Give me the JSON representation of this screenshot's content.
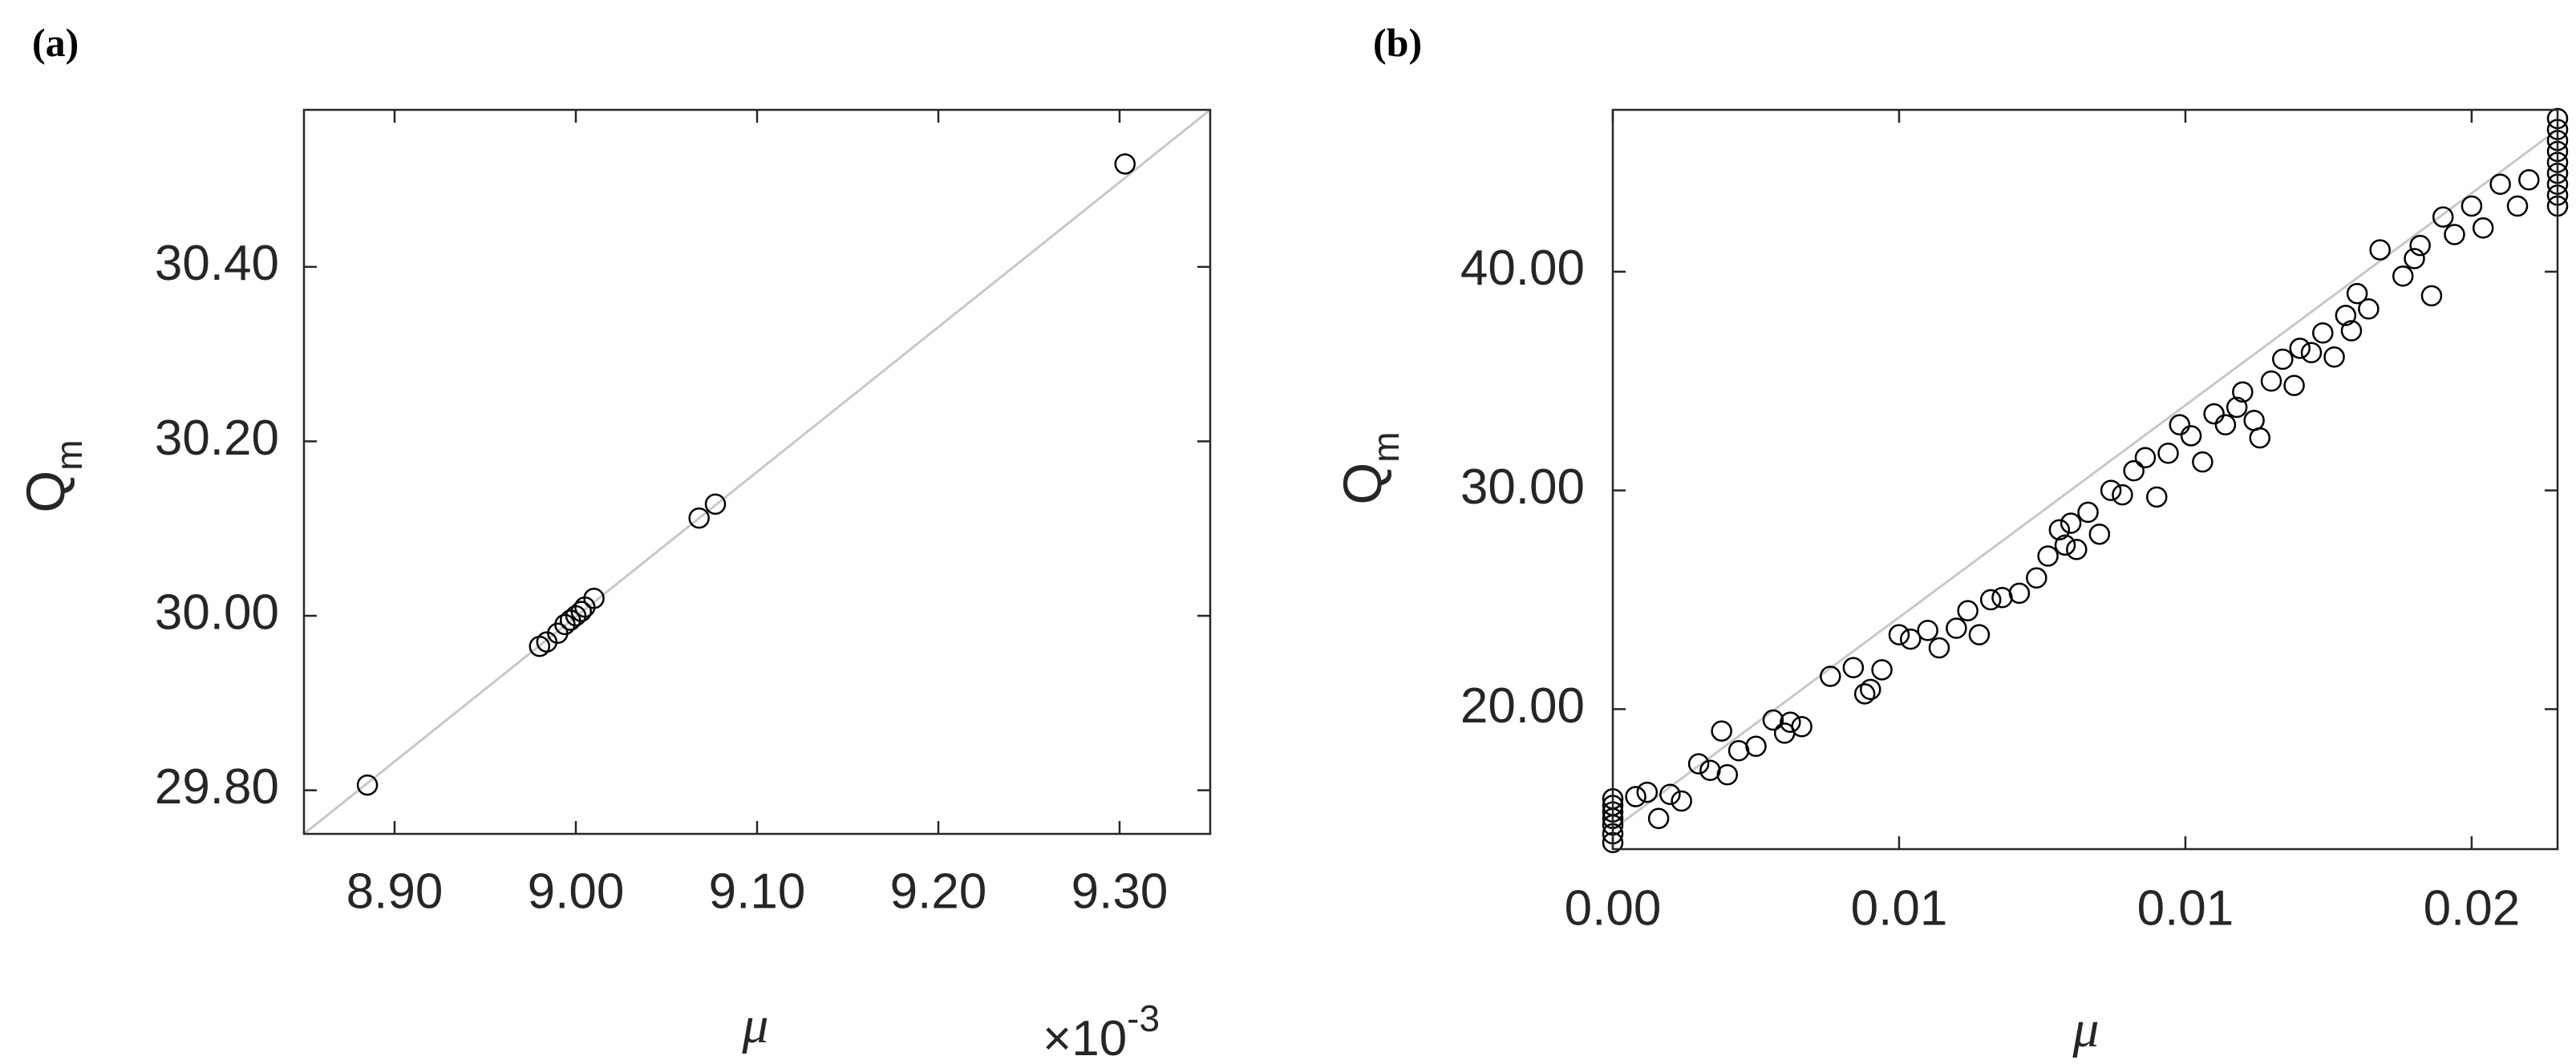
{
  "chart_data": [
    {
      "type": "scatter",
      "panel_label": "(a)",
      "xlabel": "μ",
      "ylabel": {
        "text": "Q",
        "subscript": "m"
      },
      "x_multiplier": {
        "base": "×10",
        "exponent": "-3"
      },
      "x": [
        8.885,
        8.98,
        8.984,
        8.99,
        8.994,
        8.997,
        9.0,
        9.003,
        9.005,
        9.01,
        9.068,
        9.077,
        9.303
      ],
      "y": [
        29.806,
        29.965,
        29.97,
        29.98,
        29.99,
        29.995,
        30.0,
        30.005,
        30.01,
        30.02,
        30.112,
        30.128,
        30.518
      ],
      "marker_color": "#000000",
      "fit_line": {
        "x": [
          8.85,
          9.35
        ],
        "y": [
          29.75,
          30.58
        ],
        "color": "#c8c8c8"
      },
      "xlim": [
        8.85,
        9.35
      ],
      "xticks": [
        {
          "value": 8.9,
          "label": "8.90"
        },
        {
          "value": 9.0,
          "label": "9.00"
        },
        {
          "value": 9.1,
          "label": "9.10"
        },
        {
          "value": 9.2,
          "label": "9.20"
        },
        {
          "value": 9.3,
          "label": "9.30"
        }
      ],
      "ylim": [
        29.75,
        30.58
      ],
      "yticks": [
        {
          "value": 29.8,
          "label": "29.80"
        },
        {
          "value": 30.0,
          "label": "30.00"
        },
        {
          "value": 30.2,
          "label": "30.20"
        },
        {
          "value": 30.4,
          "label": "30.40"
        }
      ],
      "grid": false
    },
    {
      "type": "scatter",
      "panel_label": "(b)",
      "xlabel": "μ",
      "ylabel": {
        "text": "Q",
        "subscript": "m"
      },
      "x": [
        0,
        0,
        0,
        0,
        0,
        0,
        0,
        0.0004,
        0.0006,
        0.0008,
        0.001,
        0.0012,
        0.0015,
        0.0017,
        0.0019,
        0.002,
        0.0022,
        0.0025,
        0.0028,
        0.003,
        0.0031,
        0.0033,
        0.0038,
        0.0042,
        0.0044,
        0.0045,
        0.0047,
        0.005,
        0.0052,
        0.0055,
        0.0057,
        0.006,
        0.0062,
        0.0064,
        0.0066,
        0.0068,
        0.0071,
        0.0074,
        0.0076,
        0.0078,
        0.0079,
        0.008,
        0.0081,
        0.0083,
        0.0085,
        0.0087,
        0.0089,
        0.0091,
        0.0093,
        0.0095,
        0.0097,
        0.0099,
        0.0101,
        0.0103,
        0.0105,
        0.0107,
        0.0109,
        0.011,
        0.0112,
        0.0113,
        0.0115,
        0.0117,
        0.0119,
        0.012,
        0.0122,
        0.0124,
        0.0126,
        0.0128,
        0.0129,
        0.013,
        0.0132,
        0.0134,
        0.0138,
        0.014,
        0.0141,
        0.0143,
        0.0145,
        0.0147,
        0.015,
        0.0152,
        0.0155,
        0.0158,
        0.016,
        0.0165,
        0.0165,
        0.0165,
        0.0165,
        0.0165,
        0.0165,
        0.0165,
        0.0165,
        0.0165
      ],
      "y": [
        13.9,
        14.3,
        14.7,
        15.0,
        15.3,
        15.6,
        15.9,
        16.0,
        16.2,
        15.0,
        16.1,
        15.8,
        17.5,
        17.2,
        19.0,
        17.0,
        18.1,
        18.3,
        19.5,
        18.9,
        19.4,
        19.2,
        21.5,
        21.9,
        20.7,
        20.9,
        21.8,
        23.4,
        23.2,
        23.6,
        22.8,
        23.7,
        24.5,
        23.4,
        25.0,
        25.1,
        25.3,
        26.0,
        27.0,
        28.2,
        27.5,
        28.5,
        27.3,
        29.0,
        28.0,
        30.0,
        29.8,
        30.9,
        31.5,
        29.7,
        31.7,
        33.0,
        32.5,
        31.3,
        33.5,
        33.0,
        33.8,
        34.5,
        33.2,
        32.4,
        35.0,
        36.0,
        34.8,
        36.5,
        36.3,
        37.2,
        36.1,
        38.0,
        37.3,
        39.0,
        38.3,
        41.0,
        39.8,
        40.6,
        41.2,
        38.9,
        42.5,
        41.7,
        43.0,
        42.0,
        44.0,
        43.0,
        44.2,
        43.0,
        43.5,
        44.0,
        44.5,
        45.0,
        45.5,
        46.0,
        46.5,
        47.0
      ],
      "marker_color": "#000000",
      "fit_line": {
        "x": [
          0,
          0.0165
        ],
        "y": [
          14.5,
          46.5
        ],
        "color": "#c8c8c8"
      },
      "xlim": [
        0,
        0.0165
      ],
      "xticks": [
        {
          "value": 0,
          "label": "0.00"
        },
        {
          "value": 0.005,
          "label": "0.01"
        },
        {
          "value": 0.01,
          "label": "0.01"
        },
        {
          "value": 0.015,
          "label": "0.02"
        }
      ],
      "ylim": [
        13.6,
        47.4
      ],
      "yticks": [
        {
          "value": 20,
          "label": "20.00"
        },
        {
          "value": 30,
          "label": "30.00"
        },
        {
          "value": 40,
          "label": "40.00"
        }
      ],
      "grid": false
    }
  ]
}
